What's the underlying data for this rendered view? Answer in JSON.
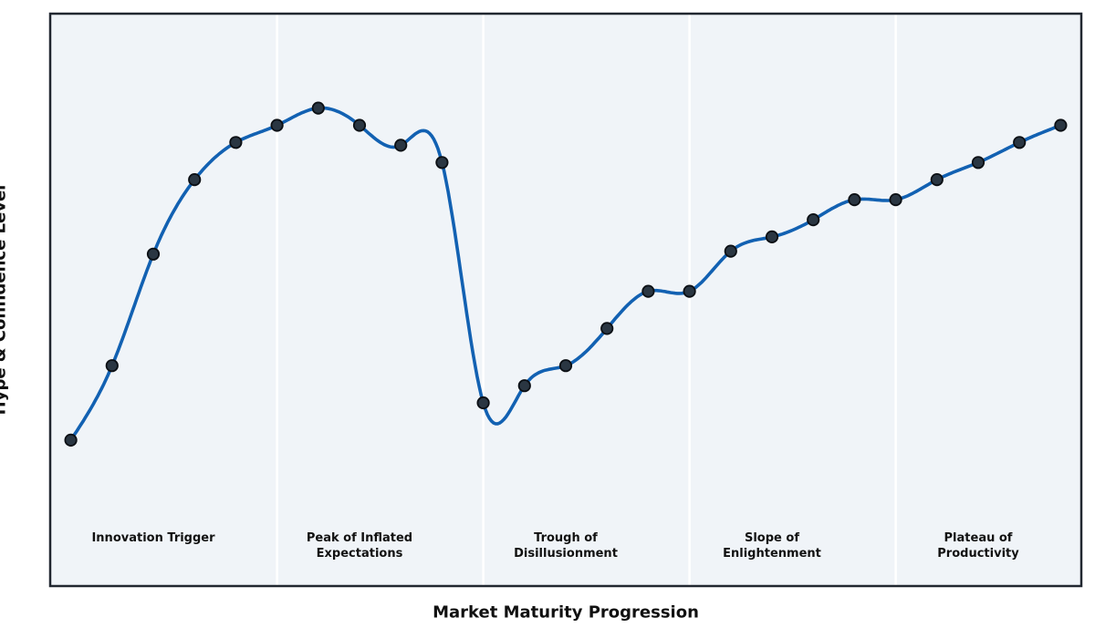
{
  "chart_data": {
    "type": "line",
    "title": "",
    "xlabel": "Market Maturity Progression",
    "ylabel": "Hype & Confidence Level",
    "x": [
      0,
      1,
      2,
      3,
      4,
      5,
      6,
      7,
      8,
      9,
      10,
      11,
      12,
      13,
      14,
      15,
      16,
      17,
      18,
      19,
      20,
      21,
      22,
      23,
      24
    ],
    "values": [
      25.5,
      38.5,
      58,
      71,
      77.5,
      80.5,
      83.5,
      80.5,
      77,
      74,
      32,
      35,
      38.5,
      45,
      51.5,
      51.5,
      58.5,
      61,
      64,
      67.5,
      67.5,
      71,
      74,
      77.5,
      80.5
    ],
    "xlim": [
      -0.5,
      24.5
    ],
    "ylim": [
      0,
      100
    ],
    "grid": false,
    "legend": null,
    "smoothing": "cubic-spline",
    "ticks_visible": false,
    "phase_dividers_x": [
      5,
      10,
      15,
      20
    ],
    "phases": [
      {
        "label": "Innovation Trigger",
        "center_x": 2
      },
      {
        "label": "Peak of Inflated\nExpectations",
        "center_x": 7
      },
      {
        "label": "Trough of\nDisillusionment",
        "center_x": 12
      },
      {
        "label": "Slope of\nEnlightenment",
        "center_x": 17
      },
      {
        "label": "Plateau of\nProductivity",
        "center_x": 22
      }
    ],
    "style": {
      "figure_bg": "#ffffff",
      "axes_bg": "#f0f4f8",
      "divider_color": "#ffffff",
      "spine_color": "#212730",
      "line_color": "#1261b2",
      "marker_fill": "#2a3642",
      "marker_edge": "#0b0f14",
      "text_color": "#111111"
    }
  }
}
